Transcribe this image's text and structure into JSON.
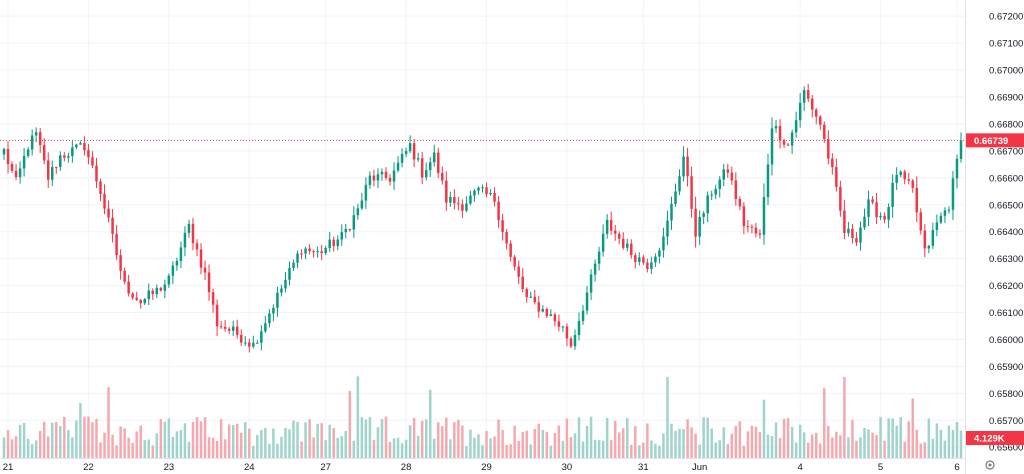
{
  "chart_data": {
    "type": "candlestick",
    "symbol": "",
    "x_ticks": [
      {
        "label": "21",
        "index": 1
      },
      {
        "label": "22",
        "index": 21
      },
      {
        "label": "23",
        "index": 41
      },
      {
        "label": "24",
        "index": 61
      },
      {
        "label": "27",
        "index": 80
      },
      {
        "label": "28",
        "index": 100
      },
      {
        "label": "29",
        "index": 120
      },
      {
        "label": "30",
        "index": 140
      },
      {
        "label": "31",
        "index": 159
      },
      {
        "label": "Jun",
        "index": 173
      },
      {
        "label": "4",
        "index": 198
      },
      {
        "label": "5",
        "index": 218
      },
      {
        "label": "6",
        "index": 237
      }
    ],
    "y_ticks": [
      "0.67200",
      "0.67100",
      "0.67000",
      "0.66900",
      "0.66800",
      "0.66700",
      "0.66600",
      "0.66500",
      "0.66400",
      "0.66300",
      "0.66200",
      "0.66100",
      "0.66000",
      "0.65900",
      "0.65800",
      "0.65700",
      "0.65600"
    ],
    "ylim": [
      0.6556,
      0.6726
    ],
    "last_price": {
      "label": "0.66739",
      "value": 0.66739,
      "color": "#f23645"
    },
    "volume_badge": {
      "label": "4.129K",
      "color": "#f23645"
    },
    "colors": {
      "up": "#089981",
      "down": "#f23645",
      "up_volume": "#9fd3cb",
      "down_volume": "#f5a9ae",
      "grid": "#f0f3fa",
      "axis_text": "#131722",
      "price_line": "#f23645"
    },
    "anchors": [
      [
        0,
        0.667
      ],
      [
        3,
        0.6658
      ],
      [
        6,
        0.6672
      ],
      [
        8,
        0.6676
      ],
      [
        11,
        0.666
      ],
      [
        14,
        0.6668
      ],
      [
        20,
        0.6672
      ],
      [
        24,
        0.6655
      ],
      [
        30,
        0.662
      ],
      [
        34,
        0.6614
      ],
      [
        38,
        0.6618
      ],
      [
        41,
        0.6622
      ],
      [
        46,
        0.6642
      ],
      [
        50,
        0.6624
      ],
      [
        53,
        0.6606
      ],
      [
        58,
        0.6602
      ],
      [
        62,
        0.6598
      ],
      [
        66,
        0.661
      ],
      [
        70,
        0.6622
      ],
      [
        74,
        0.6634
      ],
      [
        78,
        0.6632
      ],
      [
        84,
        0.6638
      ],
      [
        88,
        0.6648
      ],
      [
        91,
        0.666
      ],
      [
        96,
        0.666
      ],
      [
        101,
        0.6672
      ],
      [
        104,
        0.6662
      ],
      [
        107,
        0.6668
      ],
      [
        110,
        0.6652
      ],
      [
        114,
        0.665
      ],
      [
        118,
        0.6655
      ],
      [
        122,
        0.6652
      ],
      [
        126,
        0.663
      ],
      [
        130,
        0.6615
      ],
      [
        135,
        0.661
      ],
      [
        139,
        0.6604
      ],
      [
        141,
        0.6598
      ],
      [
        146,
        0.6622
      ],
      [
        150,
        0.6643
      ],
      [
        156,
        0.6632
      ],
      [
        160,
        0.6628
      ],
      [
        164,
        0.6637
      ],
      [
        169,
        0.6668
      ],
      [
        172,
        0.664
      ],
      [
        176,
        0.6655
      ],
      [
        180,
        0.6663
      ],
      [
        184,
        0.6643
      ],
      [
        188,
        0.6638
      ],
      [
        191,
        0.668
      ],
      [
        195,
        0.6672
      ],
      [
        199,
        0.6692
      ],
      [
        203,
        0.668
      ],
      [
        206,
        0.6662
      ],
      [
        209,
        0.664
      ],
      [
        212,
        0.6638
      ],
      [
        215,
        0.665
      ],
      [
        219,
        0.6645
      ],
      [
        222,
        0.6662
      ],
      [
        226,
        0.6655
      ],
      [
        229,
        0.6632
      ],
      [
        232,
        0.6643
      ],
      [
        235,
        0.665
      ],
      [
        238,
        0.66739
      ]
    ],
    "candle_count": 239
  }
}
